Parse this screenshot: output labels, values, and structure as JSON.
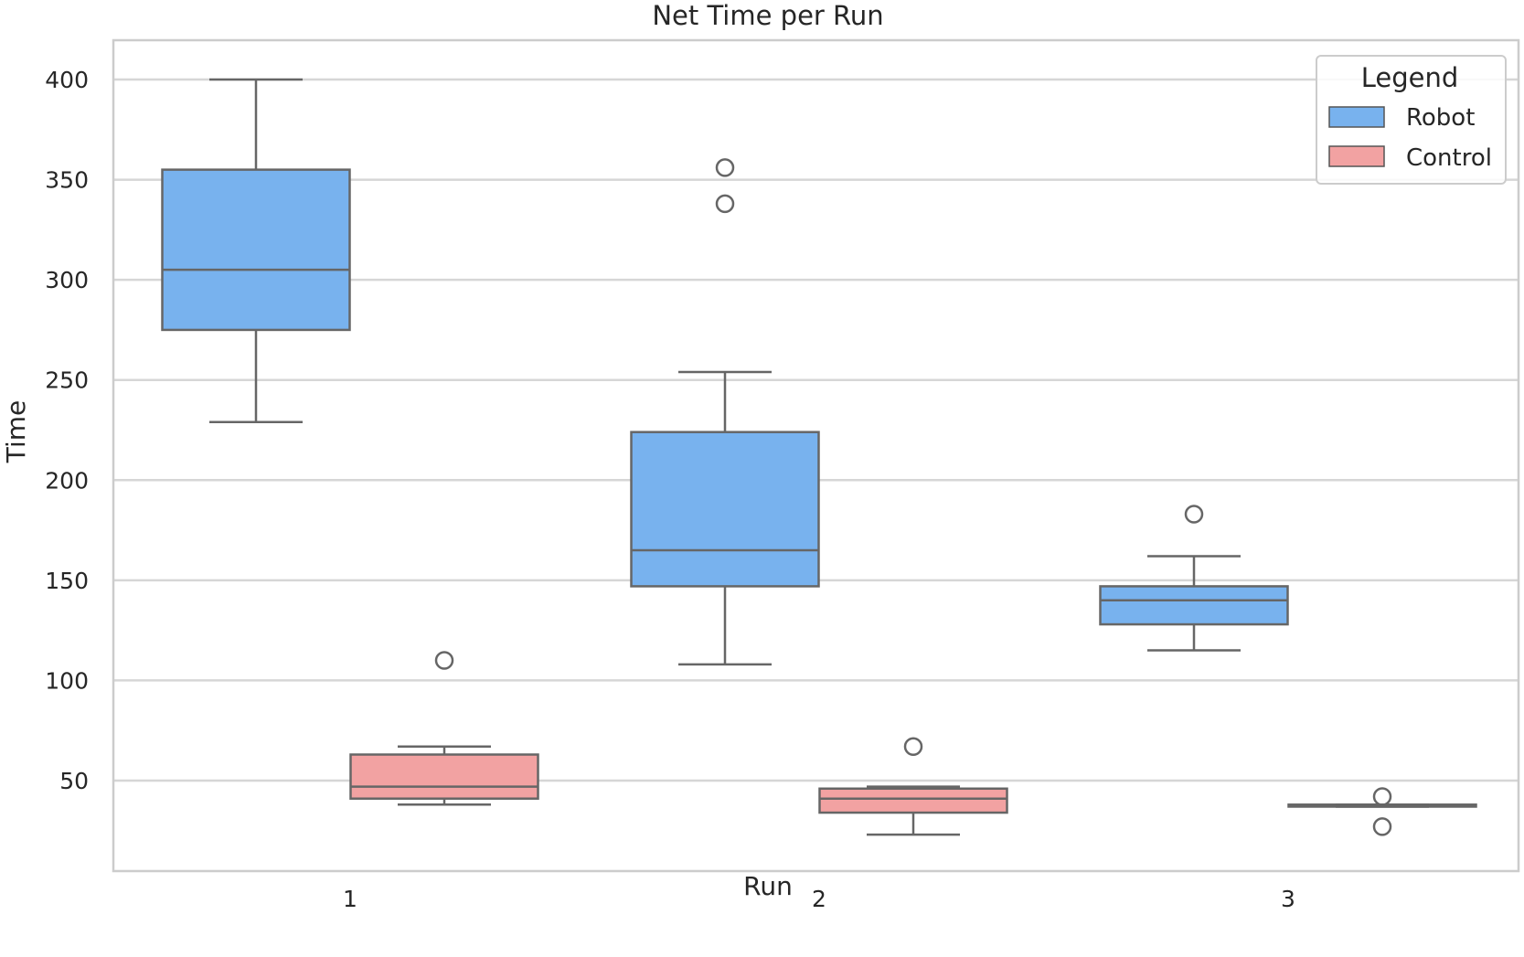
{
  "chart_data": {
    "type": "box",
    "title": "Net Time per Run",
    "xlabel": "Run",
    "ylabel": "Time",
    "categories": [
      "1",
      "2",
      "3"
    ],
    "ylim": [
      0,
      420
    ],
    "yticks": [
      50,
      100,
      150,
      200,
      250,
      300,
      350,
      400
    ],
    "grid": true,
    "legend": {
      "title": "Legend",
      "position": "top-right"
    },
    "series": [
      {
        "name": "Robot",
        "color": "#78b2ee",
        "boxes": [
          {
            "category": "1",
            "whisker_low": 229,
            "q1": 275,
            "median": 305,
            "q3": 355,
            "whisker_high": 400,
            "outliers": []
          },
          {
            "category": "2",
            "whisker_low": 108,
            "q1": 147,
            "median": 165,
            "q3": 224,
            "whisker_high": 254,
            "outliers": [
              338,
              356
            ]
          },
          {
            "category": "3",
            "whisker_low": 115,
            "q1": 128,
            "median": 140,
            "q3": 147,
            "whisker_high": 162,
            "outliers": [
              183
            ]
          }
        ]
      },
      {
        "name": "Control",
        "color": "#f2a2a2",
        "boxes": [
          {
            "category": "1",
            "whisker_low": 38,
            "q1": 41,
            "median": 47,
            "q3": 63,
            "whisker_high": 67,
            "outliers": [
              110
            ]
          },
          {
            "category": "2",
            "whisker_low": 23,
            "q1": 34,
            "median": 41,
            "q3": 46,
            "whisker_high": 47,
            "outliers": [
              67
            ]
          },
          {
            "category": "3",
            "whisker_low": 37,
            "q1": 37,
            "median": 37.5,
            "q3": 38,
            "whisker_high": 38,
            "outliers": [
              42,
              27
            ]
          }
        ]
      }
    ]
  }
}
